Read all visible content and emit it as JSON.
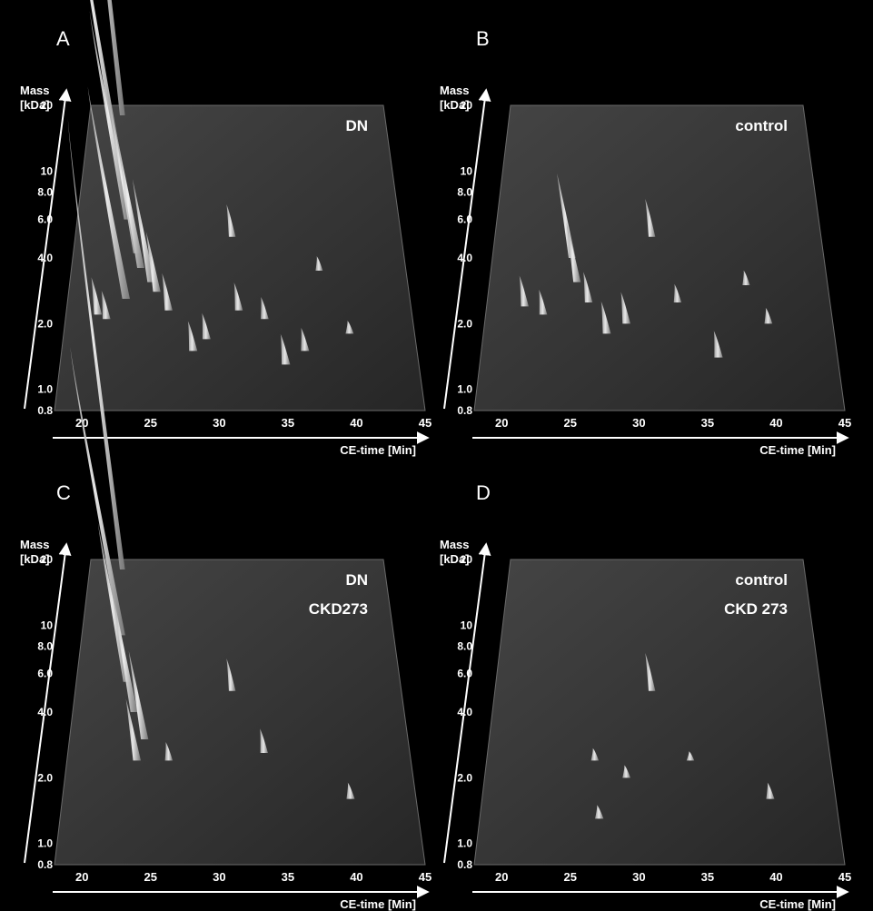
{
  "colors": {
    "background": "#000000",
    "plane": "#3a3a3a",
    "plane_edge": "#6a6a6a",
    "peak": "#e6e6e6",
    "text": "#ffffff"
  },
  "chart_data": [
    {
      "type": "3d-peak-map",
      "panel": "A",
      "labels": [
        "DN"
      ],
      "ylabel_lines": [
        "Mass",
        "[kDa]"
      ],
      "xlabel": "CE-time [Min]",
      "x_ticks": [
        "20",
        "25",
        "30",
        "35",
        "40",
        "45"
      ],
      "y_ticks": [
        "0.8",
        "1.0",
        "2.0",
        "4.0",
        "6.0",
        "8.0",
        "10",
        "20"
      ],
      "xlim": [
        18,
        45
      ],
      "ylim": [
        0.8,
        20
      ],
      "y_scale": "log",
      "peaks": [
        {
          "x": 21.0,
          "y": 18.0,
          "h": 2.5
        },
        {
          "x": 21.5,
          "y": 9.0,
          "h": 1.4
        },
        {
          "x": 22.2,
          "y": 6.0,
          "h": 0.8
        },
        {
          "x": 23.2,
          "y": 4.2,
          "h": 0.6
        },
        {
          "x": 23.6,
          "y": 3.6,
          "h": 0.5
        },
        {
          "x": 22.6,
          "y": 2.6,
          "h": 0.7
        },
        {
          "x": 24.5,
          "y": 3.1,
          "h": 0.35
        },
        {
          "x": 25.0,
          "y": 2.8,
          "h": 0.2
        },
        {
          "x": 26.0,
          "y": 2.3,
          "h": 0.12
        },
        {
          "x": 20.5,
          "y": 2.2,
          "h": 0.12
        },
        {
          "x": 21.2,
          "y": 2.1,
          "h": 0.09
        },
        {
          "x": 28.0,
          "y": 1.5,
          "h": 0.09
        },
        {
          "x": 29.0,
          "y": 1.7,
          "h": 0.08
        },
        {
          "x": 31.0,
          "y": 5.0,
          "h": 0.12
        },
        {
          "x": 31.5,
          "y": 2.3,
          "h": 0.09
        },
        {
          "x": 33.5,
          "y": 2.1,
          "h": 0.07
        },
        {
          "x": 35.0,
          "y": 1.3,
          "h": 0.09
        },
        {
          "x": 36.5,
          "y": 1.5,
          "h": 0.07
        },
        {
          "x": 38.0,
          "y": 3.5,
          "h": 0.05
        },
        {
          "x": 40.0,
          "y": 1.8,
          "h": 0.04
        }
      ]
    },
    {
      "type": "3d-peak-map",
      "panel": "B",
      "labels": [
        "control"
      ],
      "ylabel_lines": [
        "Mass",
        "[kDa]"
      ],
      "xlabel": "CE-time [Min]",
      "x_ticks": [
        "20",
        "25",
        "30",
        "35",
        "40",
        "45"
      ],
      "y_ticks": [
        "0.8",
        "1.0",
        "2.0",
        "4.0",
        "6.0",
        "8.0",
        "10",
        "20"
      ],
      "xlim": [
        18,
        45
      ],
      "ylim": [
        0.8,
        20
      ],
      "y_scale": "log",
      "peaks": [
        {
          "x": 24.5,
          "y": 4.0,
          "h": 0.3
        },
        {
          "x": 25.0,
          "y": 3.1,
          "h": 0.2
        },
        {
          "x": 21.0,
          "y": 2.4,
          "h": 0.1
        },
        {
          "x": 22.5,
          "y": 2.2,
          "h": 0.08
        },
        {
          "x": 26.0,
          "y": 2.5,
          "h": 0.1
        },
        {
          "x": 27.5,
          "y": 1.8,
          "h": 0.1
        },
        {
          "x": 29.0,
          "y": 2.0,
          "h": 0.1
        },
        {
          "x": 31.0,
          "y": 5.0,
          "h": 0.14
        },
        {
          "x": 33.0,
          "y": 2.5,
          "h": 0.06
        },
        {
          "x": 36.0,
          "y": 1.4,
          "h": 0.08
        },
        {
          "x": 38.5,
          "y": 3.0,
          "h": 0.05
        },
        {
          "x": 40.0,
          "y": 2.0,
          "h": 0.05
        }
      ]
    },
    {
      "type": "3d-peak-map",
      "panel": "C",
      "labels": [
        "DN",
        "CKD273"
      ],
      "ylabel_lines": [
        "Mass",
        "[kDa]"
      ],
      "xlabel": "CE-time [Min]",
      "x_ticks": [
        "20",
        "25",
        "30",
        "35",
        "40",
        "45"
      ],
      "y_ticks": [
        "0.8",
        "1.0",
        "2.0",
        "4.0",
        "6.0",
        "8.0",
        "10",
        "20"
      ],
      "xlim": [
        18,
        45
      ],
      "ylim": [
        0.8,
        20
      ],
      "y_scale": "log",
      "peaks": [
        {
          "x": 21.0,
          "y": 18.0,
          "h": 2.2
        },
        {
          "x": 21.5,
          "y": 9.0,
          "h": 1.2
        },
        {
          "x": 22.2,
          "y": 5.5,
          "h": 0.6
        },
        {
          "x": 23.0,
          "y": 4.0,
          "h": 0.45
        },
        {
          "x": 24.0,
          "y": 3.0,
          "h": 0.3
        },
        {
          "x": 23.5,
          "y": 2.4,
          "h": 0.2
        },
        {
          "x": 31.0,
          "y": 5.0,
          "h": 0.12
        },
        {
          "x": 33.5,
          "y": 2.6,
          "h": 0.08
        },
        {
          "x": 26.0,
          "y": 2.4,
          "h": 0.06
        },
        {
          "x": 40.0,
          "y": 1.6,
          "h": 0.05
        }
      ]
    },
    {
      "type": "3d-peak-map",
      "panel": "D",
      "labels": [
        "control",
        "CKD 273"
      ],
      "ylabel_lines": [
        "Mass",
        "[kDa]"
      ],
      "xlabel": "CE-time [Min]",
      "x_ticks": [
        "20",
        "25",
        "30",
        "35",
        "40",
        "45"
      ],
      "y_ticks": [
        "0.8",
        "1.0",
        "2.0",
        "4.0",
        "6.0",
        "8.0",
        "10",
        "20"
      ],
      "xlim": [
        18,
        45
      ],
      "ylim": [
        0.8,
        20
      ],
      "y_scale": "log",
      "peaks": [
        {
          "x": 31.0,
          "y": 5.0,
          "h": 0.14
        },
        {
          "x": 26.5,
          "y": 2.4,
          "h": 0.04
        },
        {
          "x": 29.0,
          "y": 2.0,
          "h": 0.04
        },
        {
          "x": 40.0,
          "y": 1.6,
          "h": 0.05
        },
        {
          "x": 27.0,
          "y": 1.3,
          "h": 0.04
        },
        {
          "x": 34.0,
          "y": 2.4,
          "h": 0.03
        }
      ]
    }
  ]
}
